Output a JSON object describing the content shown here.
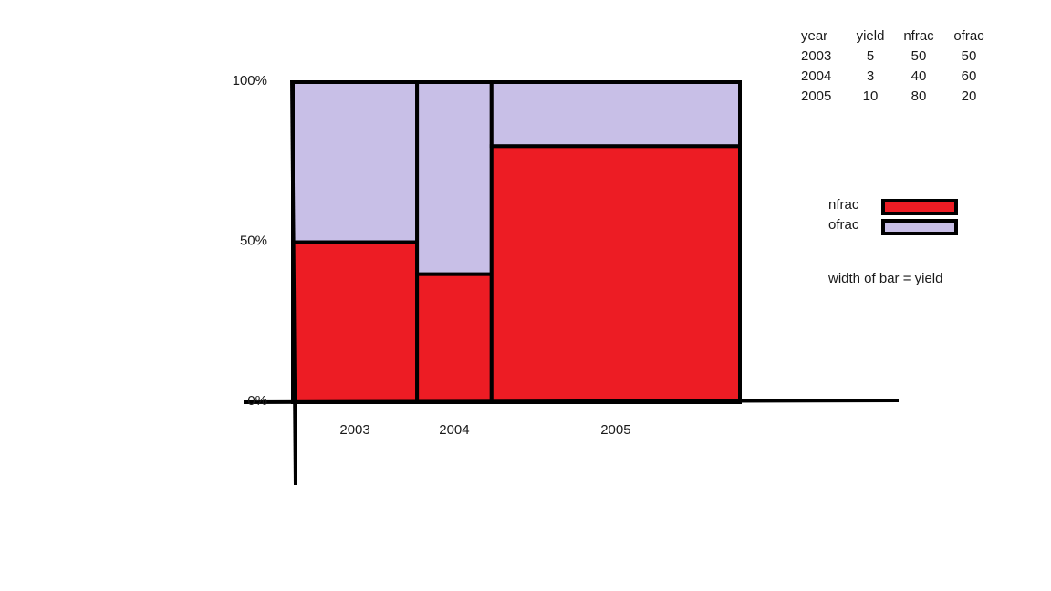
{
  "chart_data": {
    "type": "bar",
    "categories": [
      "2003",
      "2004",
      "2005"
    ],
    "widths": [
      5,
      3,
      10
    ],
    "series": [
      {
        "name": "nfrac",
        "values": [
          50,
          40,
          80
        ],
        "color": "#ED1C24"
      },
      {
        "name": "ofrac",
        "values": [
          50,
          60,
          20
        ],
        "color": "#C8BFE7"
      }
    ],
    "ylim": [
      0,
      100
    ],
    "y_ticks": [
      {
        "value": 0,
        "label": "0%"
      },
      {
        "value": 50,
        "label": "50%"
      },
      {
        "value": 100,
        "label": "100%"
      }
    ],
    "stacked": true,
    "legend_placement": "right"
  },
  "table": {
    "headers": [
      "year",
      "yield",
      "nfrac",
      "ofrac"
    ],
    "rows": [
      [
        "2003",
        "5",
        "50",
        "50"
      ],
      [
        "2004",
        "3",
        "40",
        "60"
      ],
      [
        "2005",
        "10",
        "80",
        "20"
      ]
    ]
  },
  "legend": {
    "items": [
      {
        "label": "nfrac",
        "color": "#ED1C24"
      },
      {
        "label": "ofrac",
        "color": "#C8BFE7"
      }
    ]
  },
  "note": "width of bar = yield"
}
